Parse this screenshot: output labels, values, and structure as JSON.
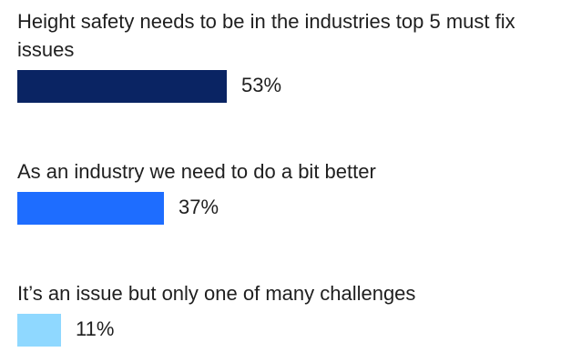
{
  "poll": {
    "options": [
      {
        "label": "Height safety needs to be in the industries top 5 must fix issues",
        "percent_label": "53%",
        "value": 53,
        "color": "#0a2463"
      },
      {
        "label": "As an industry we need to do a bit better",
        "percent_label": "37%",
        "value": 37,
        "color": "#1e6dff"
      },
      {
        "label": "It’s an issue but only one of many challenges",
        "percent_label": "11%",
        "value": 11,
        "color": "#8fd8ff"
      }
    ]
  }
}
